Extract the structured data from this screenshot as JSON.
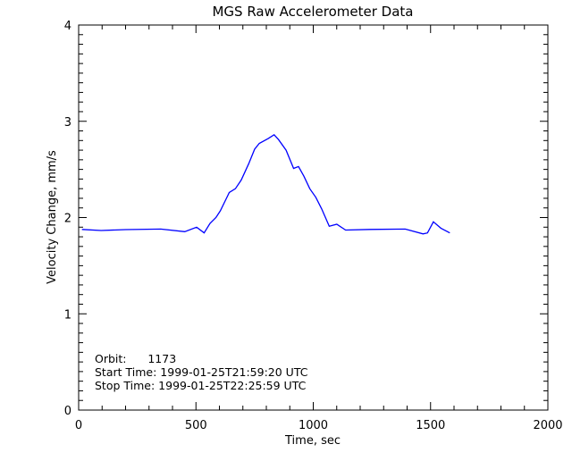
{
  "chart_data": {
    "type": "line",
    "title": "MGS Raw Accelerometer Data",
    "xlabel": "Time, sec",
    "ylabel": "Velocity Change, mm/s",
    "xlim": [
      0,
      2000
    ],
    "ylim": [
      0,
      4
    ],
    "xticks": [
      "0",
      "500",
      "1000",
      "1500",
      "2000"
    ],
    "yticks": [
      "0",
      "1",
      "2",
      "3",
      "4"
    ],
    "grid": false,
    "line_color": "#0000ff",
    "annotations": [
      "Orbit:      1173",
      "Start Time: 1999-01-25T21:59:20 UTC",
      "Stop Time: 1999-01-25T22:25:59 UTC"
    ],
    "series": [
      {
        "x": [
          14,
          96,
          200,
          350,
          452,
          503,
          535,
          560,
          585,
          604,
          642,
          668,
          693,
          725,
          750,
          770,
          808,
          833,
          852,
          884,
          916,
          937,
          960,
          985,
          1011,
          1036,
          1068,
          1100,
          1138,
          1240,
          1392,
          1468,
          1487,
          1512,
          1544,
          1582
        ],
        "y": [
          1.877,
          1.865,
          1.875,
          1.88,
          1.853,
          1.9,
          1.84,
          1.94,
          2.0,
          2.07,
          2.26,
          2.3,
          2.39,
          2.56,
          2.71,
          2.77,
          2.82,
          2.86,
          2.81,
          2.7,
          2.51,
          2.53,
          2.43,
          2.3,
          2.21,
          2.09,
          1.91,
          1.93,
          1.87,
          1.877,
          1.88,
          1.83,
          1.84,
          1.955,
          1.89,
          1.84
        ]
      }
    ]
  }
}
